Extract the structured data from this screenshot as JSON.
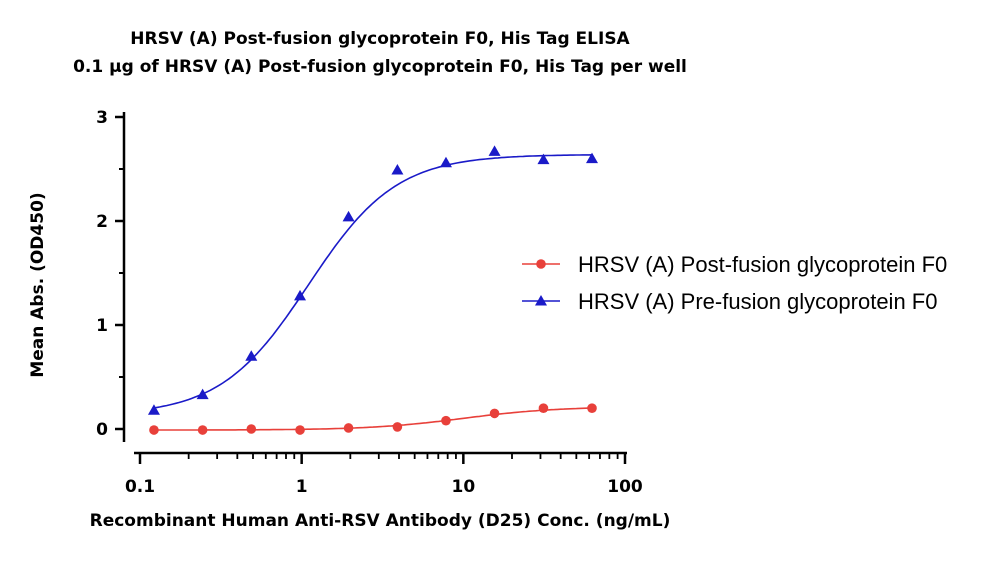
{
  "chart_data": {
    "type": "scatter",
    "title": "HRSV (A) Post-fusion glycoprotein F0, His Tag ELISA",
    "subtitle": "0.1 µg of HRSV (A) Post-fusion glycoprotein F0, His Tag per well",
    "xlabel": "Recombinant Human Anti-RSV Antibody (D25) Conc. (ng/mL)",
    "ylabel": "Mean Abs. (OD450)",
    "xscale": "log",
    "xlim": [
      0.1,
      100
    ],
    "ylim": [
      0,
      3
    ],
    "xticks": [
      {
        "value": 0.1,
        "label": "0.1"
      },
      {
        "value": 1,
        "label": "1"
      },
      {
        "value": 10,
        "label": "10"
      },
      {
        "value": 100,
        "label": "100"
      }
    ],
    "yticks": [
      {
        "value": 0,
        "label": "0"
      },
      {
        "value": 1,
        "label": "1"
      },
      {
        "value": 2,
        "label": "2"
      },
      {
        "value": 3,
        "label": "3"
      }
    ],
    "grid": false,
    "legend_position": "right",
    "series": [
      {
        "name": "HRSV (A) Post-fusion glycoprotein F0",
        "color": "#e8403a",
        "marker": "circle",
        "x": [
          0.122,
          0.244,
          0.488,
          0.977,
          1.95,
          3.91,
          7.81,
          15.6,
          31.3,
          62.5
        ],
        "y": [
          -0.01,
          -0.01,
          0.0,
          -0.01,
          0.01,
          0.02,
          0.08,
          0.15,
          0.2,
          0.2
        ],
        "fit": {
          "bottom": -0.01,
          "top": 0.215,
          "ec50": 10,
          "hill": 1.5
        }
      },
      {
        "name": "HRSV (A) Pre-fusion glycoprotein F0",
        "color": "#1a1ac8",
        "marker": "triangle",
        "x": [
          0.122,
          0.244,
          0.488,
          0.977,
          1.95,
          3.91,
          7.81,
          15.6,
          31.3,
          62.5
        ],
        "y": [
          0.18,
          0.33,
          0.7,
          1.28,
          2.04,
          2.49,
          2.56,
          2.67,
          2.59,
          2.6
        ],
        "fit": {
          "bottom": 0.13,
          "top": 2.64,
          "ec50": 1.1,
          "hill": 1.6
        }
      }
    ]
  }
}
